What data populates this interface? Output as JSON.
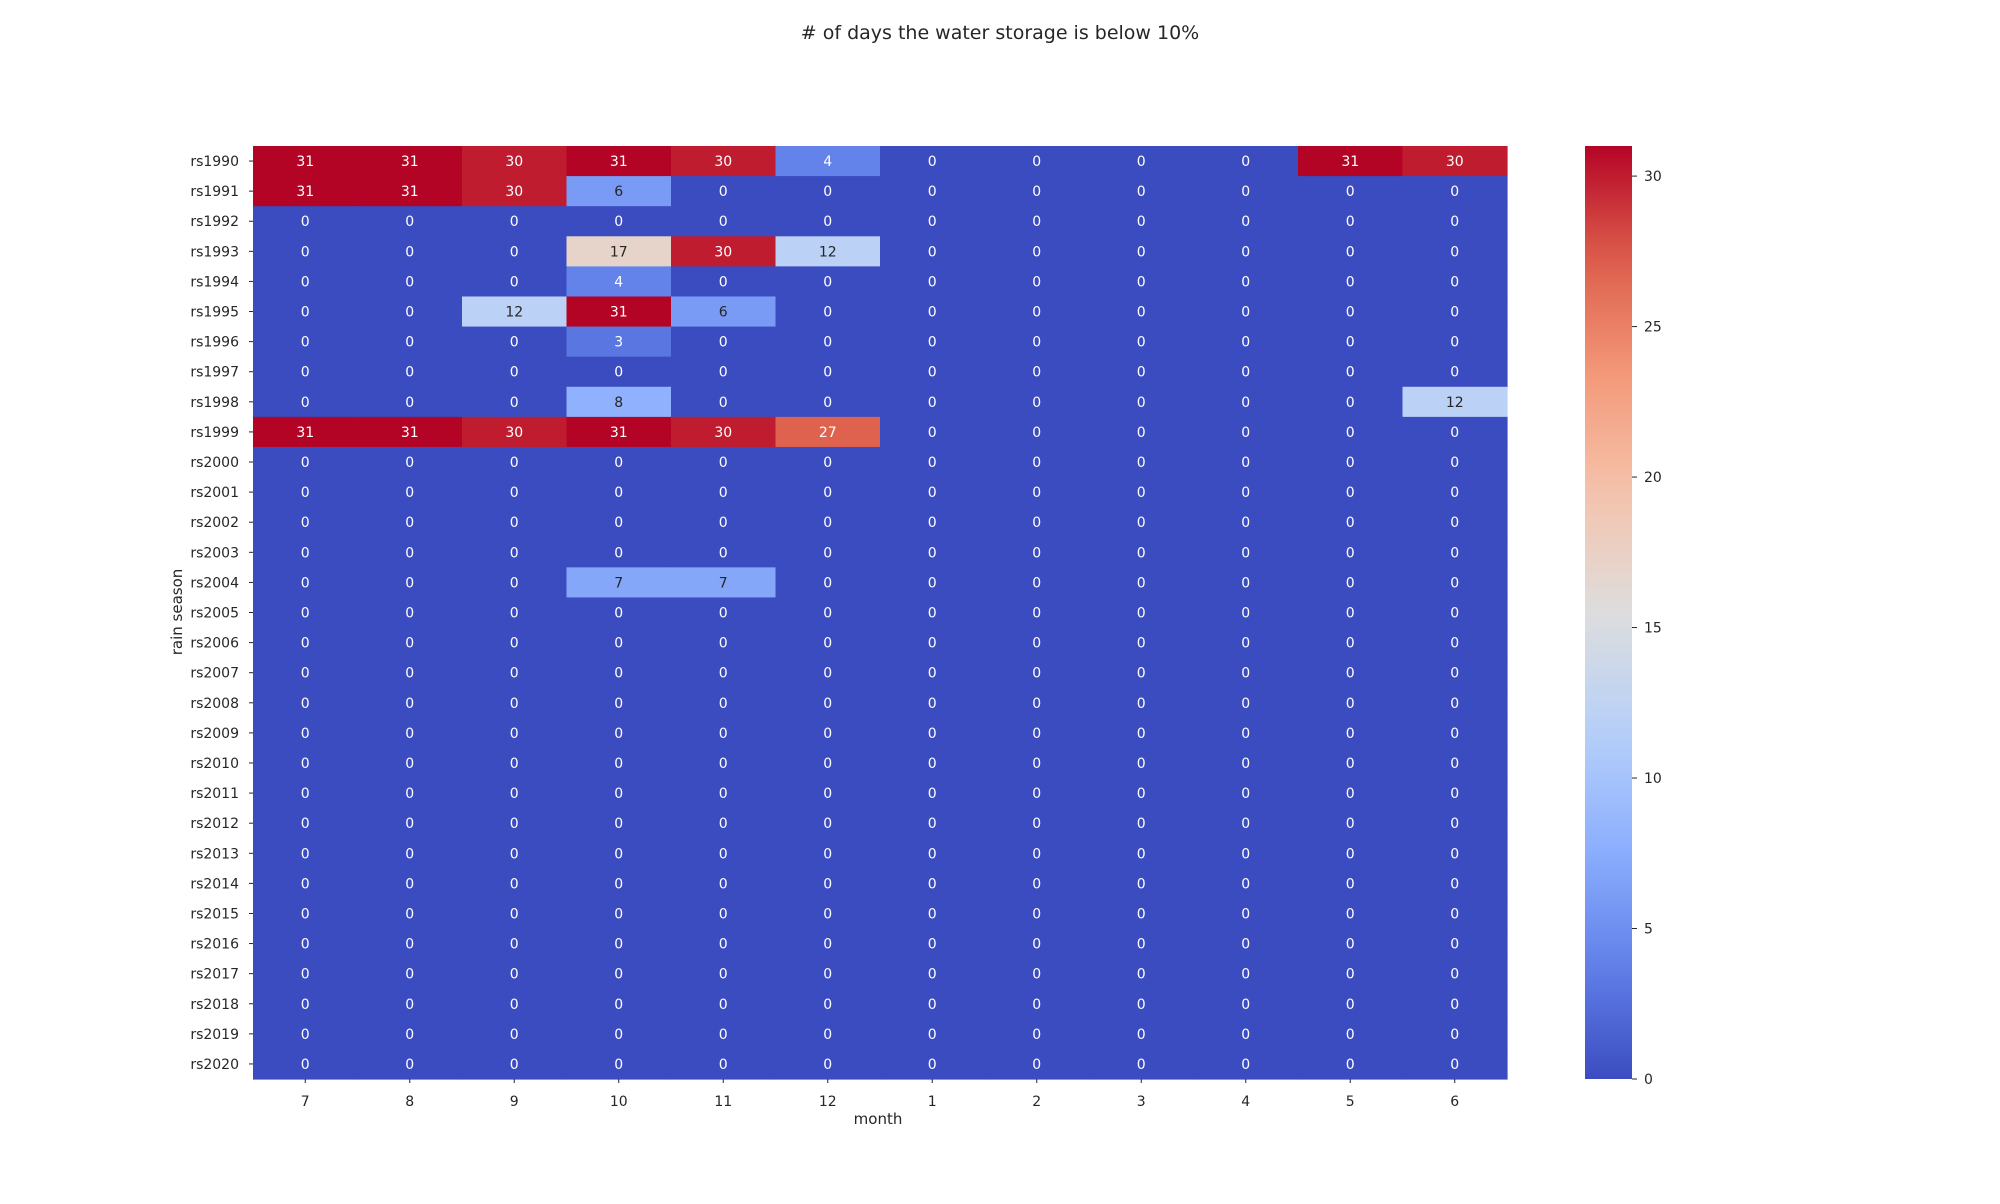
{
  "chart_data": {
    "type": "heatmap",
    "title": "# of days the water storage is below 10%",
    "xlabel": "month",
    "ylabel": "rain season",
    "x_categories": [
      "7",
      "8",
      "9",
      "10",
      "11",
      "12",
      "1",
      "2",
      "3",
      "4",
      "5",
      "6"
    ],
    "y_categories": [
      "rs1990",
      "rs1991",
      "rs1992",
      "rs1993",
      "rs1994",
      "rs1995",
      "rs1996",
      "rs1997",
      "rs1998",
      "rs1999",
      "rs2000",
      "rs2001",
      "rs2002",
      "rs2003",
      "rs2004",
      "rs2005",
      "rs2006",
      "rs2007",
      "rs2008",
      "rs2009",
      "rs2010",
      "rs2011",
      "rs2012",
      "rs2013",
      "rs2014",
      "rs2015",
      "rs2016",
      "rs2017",
      "rs2018",
      "rs2019",
      "rs2020"
    ],
    "values": [
      [
        31,
        31,
        30,
        31,
        30,
        4,
        0,
        0,
        0,
        0,
        31,
        30
      ],
      [
        31,
        31,
        30,
        6,
        0,
        0,
        0,
        0,
        0,
        0,
        0,
        0
      ],
      [
        0,
        0,
        0,
        0,
        0,
        0,
        0,
        0,
        0,
        0,
        0,
        0
      ],
      [
        0,
        0,
        0,
        17,
        30,
        12,
        0,
        0,
        0,
        0,
        0,
        0
      ],
      [
        0,
        0,
        0,
        4,
        0,
        0,
        0,
        0,
        0,
        0,
        0,
        0
      ],
      [
        0,
        0,
        12,
        31,
        6,
        0,
        0,
        0,
        0,
        0,
        0,
        0
      ],
      [
        0,
        0,
        0,
        3,
        0,
        0,
        0,
        0,
        0,
        0,
        0,
        0
      ],
      [
        0,
        0,
        0,
        0,
        0,
        0,
        0,
        0,
        0,
        0,
        0,
        0
      ],
      [
        0,
        0,
        0,
        8,
        0,
        0,
        0,
        0,
        0,
        0,
        0,
        12
      ],
      [
        31,
        31,
        30,
        31,
        30,
        27,
        0,
        0,
        0,
        0,
        0,
        0
      ],
      [
        0,
        0,
        0,
        0,
        0,
        0,
        0,
        0,
        0,
        0,
        0,
        0
      ],
      [
        0,
        0,
        0,
        0,
        0,
        0,
        0,
        0,
        0,
        0,
        0,
        0
      ],
      [
        0,
        0,
        0,
        0,
        0,
        0,
        0,
        0,
        0,
        0,
        0,
        0
      ],
      [
        0,
        0,
        0,
        0,
        0,
        0,
        0,
        0,
        0,
        0,
        0,
        0
      ],
      [
        0,
        0,
        0,
        7,
        7,
        0,
        0,
        0,
        0,
        0,
        0,
        0
      ],
      [
        0,
        0,
        0,
        0,
        0,
        0,
        0,
        0,
        0,
        0,
        0,
        0
      ],
      [
        0,
        0,
        0,
        0,
        0,
        0,
        0,
        0,
        0,
        0,
        0,
        0
      ],
      [
        0,
        0,
        0,
        0,
        0,
        0,
        0,
        0,
        0,
        0,
        0,
        0
      ],
      [
        0,
        0,
        0,
        0,
        0,
        0,
        0,
        0,
        0,
        0,
        0,
        0
      ],
      [
        0,
        0,
        0,
        0,
        0,
        0,
        0,
        0,
        0,
        0,
        0,
        0
      ],
      [
        0,
        0,
        0,
        0,
        0,
        0,
        0,
        0,
        0,
        0,
        0,
        0
      ],
      [
        0,
        0,
        0,
        0,
        0,
        0,
        0,
        0,
        0,
        0,
        0,
        0
      ],
      [
        0,
        0,
        0,
        0,
        0,
        0,
        0,
        0,
        0,
        0,
        0,
        0
      ],
      [
        0,
        0,
        0,
        0,
        0,
        0,
        0,
        0,
        0,
        0,
        0,
        0
      ],
      [
        0,
        0,
        0,
        0,
        0,
        0,
        0,
        0,
        0,
        0,
        0,
        0
      ],
      [
        0,
        0,
        0,
        0,
        0,
        0,
        0,
        0,
        0,
        0,
        0,
        0
      ],
      [
        0,
        0,
        0,
        0,
        0,
        0,
        0,
        0,
        0,
        0,
        0,
        0
      ],
      [
        0,
        0,
        0,
        0,
        0,
        0,
        0,
        0,
        0,
        0,
        0,
        0
      ],
      [
        0,
        0,
        0,
        0,
        0,
        0,
        0,
        0,
        0,
        0,
        0,
        0
      ],
      [
        0,
        0,
        0,
        0,
        0,
        0,
        0,
        0,
        0,
        0,
        0,
        0
      ],
      [
        0,
        0,
        0,
        0,
        0,
        0,
        0,
        0,
        0,
        0,
        0,
        0
      ]
    ],
    "value_range": [
      0,
      31
    ],
    "colormap": "coolwarm",
    "colorbar_ticks": [
      0,
      5,
      10,
      15,
      20,
      25,
      30
    ],
    "annotated": true,
    "grid": false
  }
}
